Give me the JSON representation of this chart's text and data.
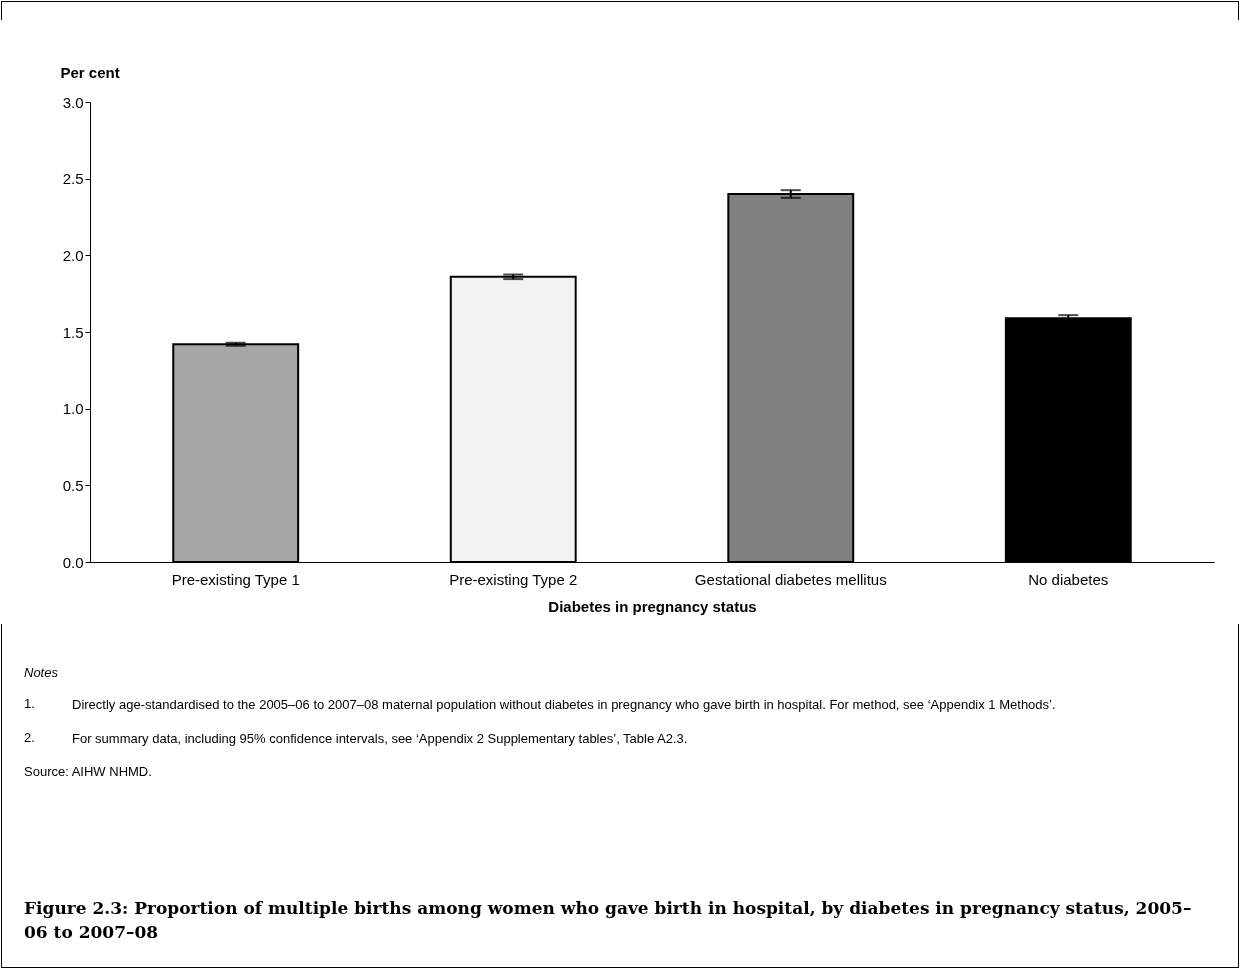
{
  "chart_data": {
    "type": "bar",
    "title": "Figure 2.3: Proportion of multiple births among women who gave birth in hospital, by diabetes in pregnancy status, 2005–06 to 2007–08",
    "xlabel": "Diabetes in pregnancy status",
    "ylabel": "Per cent",
    "categories": [
      "Pre-existing Type 1",
      "Pre-existing Type 2",
      "Gestational diabetes mellitus",
      "No diabetes"
    ],
    "values": [
      1.42,
      1.86,
      2.4,
      1.59
    ],
    "errors": [
      0.01,
      0.015,
      0.025,
      0.02
    ],
    "colors": [
      "#a6a6a6",
      "#f2f2f2",
      "#808080",
      "#000000"
    ],
    "ylim": [
      0,
      3
    ],
    "yticks": [
      {
        "value": 0,
        "label": "0.0"
      },
      {
        "value": 0.5,
        "label": "0.5"
      },
      {
        "value": 1,
        "label": "1.0"
      },
      {
        "value": 1.5,
        "label": "1.5"
      },
      {
        "value": 2,
        "label": "2.0"
      },
      {
        "value": 2.5,
        "label": "2.5"
      },
      {
        "value": 3,
        "label": "3.0"
      }
    ],
    "grid": false,
    "legend": false,
    "annotations": [
      "Notes",
      "1.\tDirectly age-standardised to the 2005–06 to 2007–08 maternal population without diabetes in pregnancy who gave birth in hospital. For method, see ‘Appendix 1 Methods’.",
      "2.\tFor summary data, including 95% confidence intervals, see ‘Appendix 2 Supplementary tables’, Table A2.3.",
      "Source: AIHW NHMD."
    ]
  }
}
